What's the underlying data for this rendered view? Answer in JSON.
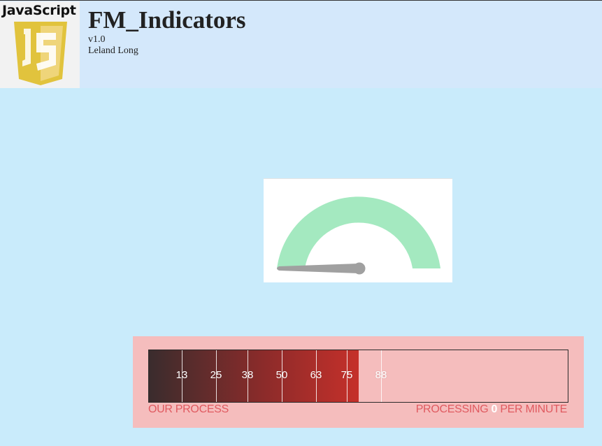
{
  "header": {
    "logo_text": "JavaScript",
    "title": "FM_Indicators",
    "version": "v1.0",
    "author": "Leland Long"
  },
  "gauge": {
    "value": 0,
    "arc_color": "#a4e9c0",
    "needle_color": "#a0a0a0"
  },
  "progress": {
    "fill_fraction": 0.5,
    "ticks": [
      "13",
      "25",
      "38",
      "50",
      "63",
      "75",
      "88"
    ],
    "left_label": "OUR PROCESS",
    "right_prefix": "PROCESSING",
    "rate": "0",
    "right_suffix": "PER MINUTE"
  },
  "colors": {
    "page_background": "#c9ebfb",
    "header_background": "#d4e8fb",
    "progress_panel": "#f5bdbd",
    "label_color": "#e05a60"
  }
}
